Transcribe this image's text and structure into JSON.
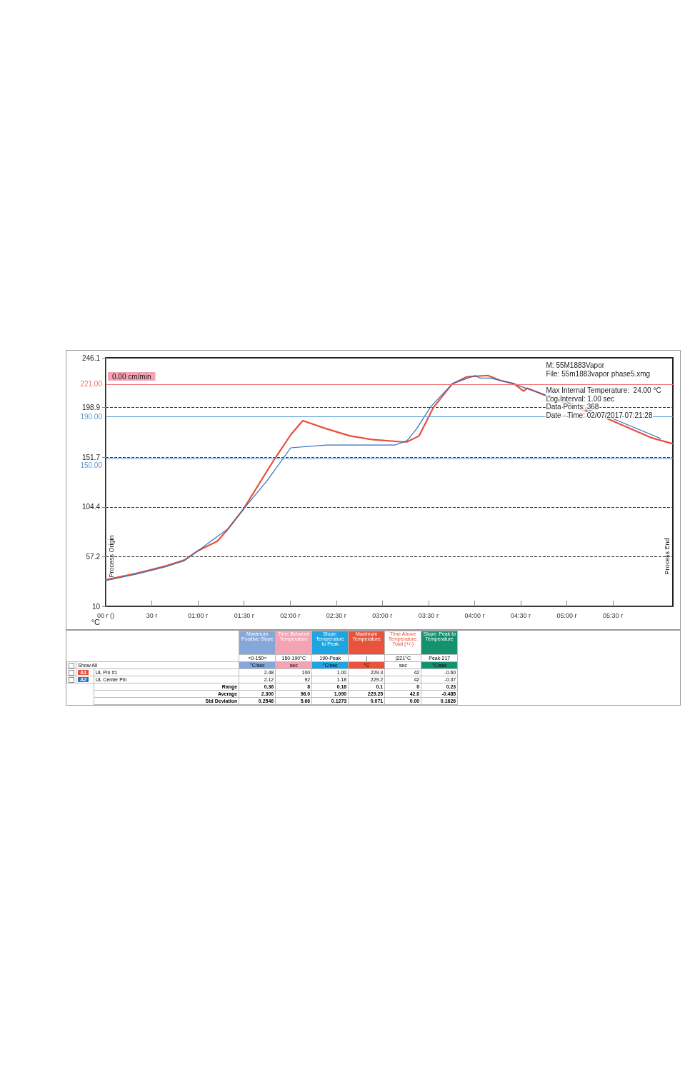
{
  "chart_data": [
    {
      "type": "line",
      "ylabel": "°C",
      "xlim": [
        0,
        369
      ],
      "ylim": [
        10.0,
        246.1
      ],
      "xticks": [
        {
          "value": 0,
          "label": "00 r ()"
        },
        {
          "value": 30,
          "label": "30 r"
        },
        {
          "value": 60,
          "label": "01:00 r"
        },
        {
          "value": 90,
          "label": "01:30 r"
        },
        {
          "value": 120,
          "label": "02:00 r"
        },
        {
          "value": 150,
          "label": "02:30 r"
        },
        {
          "value": 180,
          "label": "03:00 r"
        },
        {
          "value": 210,
          "label": "03:30 r"
        },
        {
          "value": 240,
          "label": "04:00 r"
        },
        {
          "value": 270,
          "label": "04:30 r"
        },
        {
          "value": 300,
          "label": "05:00 r"
        },
        {
          "value": 330,
          "label": "05:30 r"
        }
      ],
      "yticks": [
        10.0,
        57.2,
        104.4,
        151.7,
        198.9,
        246.1
      ],
      "grid": "y",
      "marker": "none",
      "line_style": "solid",
      "series": [
        {
          "color": "#e8503a",
          "x": [
            0,
            20,
            38.5,
            51,
            60,
            72.5,
            78.7,
            89.5,
            109.6,
            120.4,
            128.2,
            143.6,
            159,
            173,
            193,
            196,
            203.9,
            213.2,
            225.5,
            234.8,
            248.7,
            256.4,
            265.7,
            271.9,
            274.2,
            296.6,
            327.5,
            355.3,
            368.5
          ],
          "values": [
            35.2,
            41.4,
            48.2,
            53.9,
            62.8,
            71.8,
            81.9,
            102.2,
            149.4,
            173,
            186.4,
            178.7,
            171.9,
            168.5,
            166.2,
            166.2,
            171.9,
            198.9,
            221.4,
            228,
            229.3,
            224.7,
            221.4,
            214.5,
            217.2,
            204.4,
            187.6,
            170,
            164.6
          ]
        },
        {
          "color": "#2f6fbf",
          "x": [
            0,
            20,
            38.5,
            51,
            60,
            69.4,
            80,
            89.5,
            104.9,
            120.4,
            143.6,
            173,
            188.4,
            196,
            202.3,
            211.6,
            225.5,
            240.2,
            243.3,
            250.3,
            265.7,
            273.4,
            296.6,
            327.5,
            360.8
          ],
          "values": [
            34.4,
            40.6,
            47.4,
            53.2,
            62.8,
            72.9,
            84.2,
            102.2,
            129.1,
            160.6,
            163.3,
            163.3,
            163.3,
            167.3,
            178.7,
            199.9,
            221.4,
            229.2,
            226.9,
            226.9,
            221.4,
            217.2,
            205.6,
            189.8,
            169.6
          ]
        }
      ],
      "ref_lines": [
        {
          "axis": "y",
          "value": 221,
          "label": "221.00",
          "color": "#f07070"
        },
        {
          "axis": "y",
          "value": 190,
          "label": "190.00",
          "color": "#5b9bd5"
        },
        {
          "axis": "y",
          "value": 150,
          "label": "150.00",
          "color": "#5b9bd5"
        }
      ],
      "annotations": [
        "0.00 cm/min",
        "M: 55M1883Vapor",
        "File: 55m1883vapor phase5.xmg",
        "Max Internal Temperature:  24.00 °C",
        "Log Interval: 1.00 sec",
        "Data Points: 368",
        "Date - Time: 02/07/2017 07:21:28",
        "Process Origin",
        "Process End"
      ]
    },
    {
      "type": "other",
      "categories": [
        "Maximum Positive Slope",
        "Time Between Temperature",
        "Slope: Temperature to Peak",
        "Maximum Temperature",
        "Time Above Temperature: Total (+/-)",
        "Slope: Peak to Temperature"
      ],
      "colors": [
        "#86a8d8",
        "#f4a3b5",
        "#1ea5e0",
        "#e9533c",
        "#ffffff",
        "#16916f"
      ],
      "y_categories": [
        null,
        "Show All",
        "A1",
        "A2",
        null,
        null,
        null
      ],
      "y2_categories": [
        null,
        null,
        "UL Pin #1",
        "UL Center Pin",
        "Range",
        "Average",
        "Std Deviation"
      ],
      "cell_labels": [
        [
          "=0-150=",
          "150-190°C",
          "190-Peak",
          "|",
          "|221°C",
          "Peak-217"
        ],
        [
          "°C/sec",
          "sec",
          "°C/sec",
          "°C",
          "sec",
          "°C/sec"
        ],
        [
          "2.48",
          "100",
          "1.00",
          "229.3",
          "42",
          "-0.60"
        ],
        [
          "2.12",
          "92",
          "1.18",
          "229.2",
          "42",
          "-0.37"
        ],
        [
          "0.36",
          "8",
          "0.18",
          "0.1",
          "0",
          "0.23"
        ],
        [
          "2.300",
          "96.0",
          "1.090",
          "229.25",
          "42.0",
          "-0.485"
        ],
        [
          "0.2546",
          "5.66",
          "0.1273",
          "0.071",
          "0.00",
          "0.1626"
        ]
      ]
    }
  ]
}
